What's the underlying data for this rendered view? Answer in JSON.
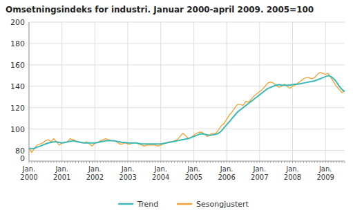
{
  "chart_data": {
    "type": "line",
    "title": "Omsetningsindeks for industri. Januar 2000-april 2009. 2005=100",
    "categories": [
      "Jan.\n2000",
      null,
      null,
      null,
      null,
      null,
      null,
      null,
      null,
      null,
      null,
      null,
      "Jan.\n2001",
      null,
      null,
      null,
      null,
      null,
      null,
      null,
      null,
      null,
      null,
      null,
      "Jan.\n2002",
      null,
      null,
      null,
      null,
      null,
      null,
      null,
      null,
      null,
      null,
      null,
      "Jan.\n2003",
      null,
      null,
      null,
      null,
      null,
      null,
      null,
      null,
      null,
      null,
      null,
      "Jan.\n2004",
      null,
      null,
      null,
      null,
      null,
      null,
      null,
      null,
      null,
      null,
      null,
      "Jan.\n2005",
      null,
      null,
      null,
      null,
      null,
      null,
      null,
      null,
      null,
      null,
      null,
      "Jan.\n2006",
      null,
      null,
      null,
      null,
      null,
      null,
      null,
      null,
      null,
      null,
      null,
      "Jan.\n2007",
      null,
      null,
      null,
      null,
      null,
      null,
      null,
      null,
      null,
      null,
      null,
      "Jan.\n2008",
      null,
      null,
      null,
      null,
      null,
      null,
      null,
      null,
      null,
      null,
      null,
      "Jan.\n2009",
      null,
      null,
      null,
      null,
      null,
      null,
      null
    ],
    "series": [
      {
        "name": "Trend",
        "color": "#3ab8b8",
        "values": [
          82,
          81.5,
          82,
          83,
          84,
          85,
          86,
          87,
          87.5,
          88,
          88,
          87.5,
          87,
          87.5,
          88,
          88.5,
          89,
          88.5,
          88,
          87.5,
          87,
          87,
          87,
          87,
          87,
          87.5,
          88,
          88.5,
          89,
          89,
          89,
          89,
          88.5,
          88,
          87.5,
          87.5,
          87,
          87,
          87,
          87,
          86.5,
          86,
          86,
          86,
          86,
          86,
          86,
          86,
          86,
          86.5,
          87,
          87.5,
          88,
          88.5,
          89,
          89.5,
          90,
          90.5,
          91,
          92,
          93,
          94,
          95,
          95.5,
          95,
          94.5,
          94,
          94.5,
          95,
          96,
          98,
          101,
          104,
          107,
          110,
          113,
          116,
          118,
          120,
          122,
          124,
          126,
          128,
          130,
          132,
          134,
          136,
          138,
          139,
          140,
          141,
          141.5,
          141,
          141,
          141,
          141,
          141.5,
          142,
          142,
          142.5,
          143,
          143.5,
          144,
          144.5,
          145,
          146,
          147,
          148,
          149,
          150,
          149,
          147,
          144,
          140,
          137,
          135
        ]
      },
      {
        "name": "Sesongjustert",
        "color": "#f0a030",
        "values": [
          82,
          78,
          82,
          85,
          86,
          87,
          89,
          90,
          88,
          91,
          88,
          85,
          87,
          87,
          88,
          91,
          90,
          89,
          88,
          87,
          87,
          88,
          86,
          84,
          87,
          87,
          89,
          90,
          91,
          90,
          89,
          89,
          88,
          86,
          86,
          87,
          86,
          86,
          87,
          87,
          86,
          85,
          84,
          85,
          85,
          85,
          85,
          84,
          85,
          86,
          87,
          88,
          88,
          89,
          90,
          93,
          96,
          94,
          91,
          92,
          94,
          96,
          97,
          97,
          95,
          93,
          95,
          96,
          96,
          99,
          103,
          105,
          109,
          113,
          116,
          120,
          123,
          123,
          122,
          126,
          125,
          128,
          131,
          133,
          135,
          137,
          140,
          143,
          144,
          143,
          141,
          139,
          140,
          142,
          140,
          138,
          140,
          141,
          143,
          145,
          147,
          148,
          148,
          147,
          148,
          151,
          153,
          152,
          151,
          152,
          148,
          144,
          140,
          137,
          134,
          136
        ]
      }
    ],
    "ylim": [
      70,
      200
    ],
    "yticks": [
      80,
      100,
      120,
      140,
      160,
      180,
      200
    ],
    "grid": true,
    "legend": "bottom",
    "annotations": [
      {
        "text": "0"
      }
    ]
  }
}
